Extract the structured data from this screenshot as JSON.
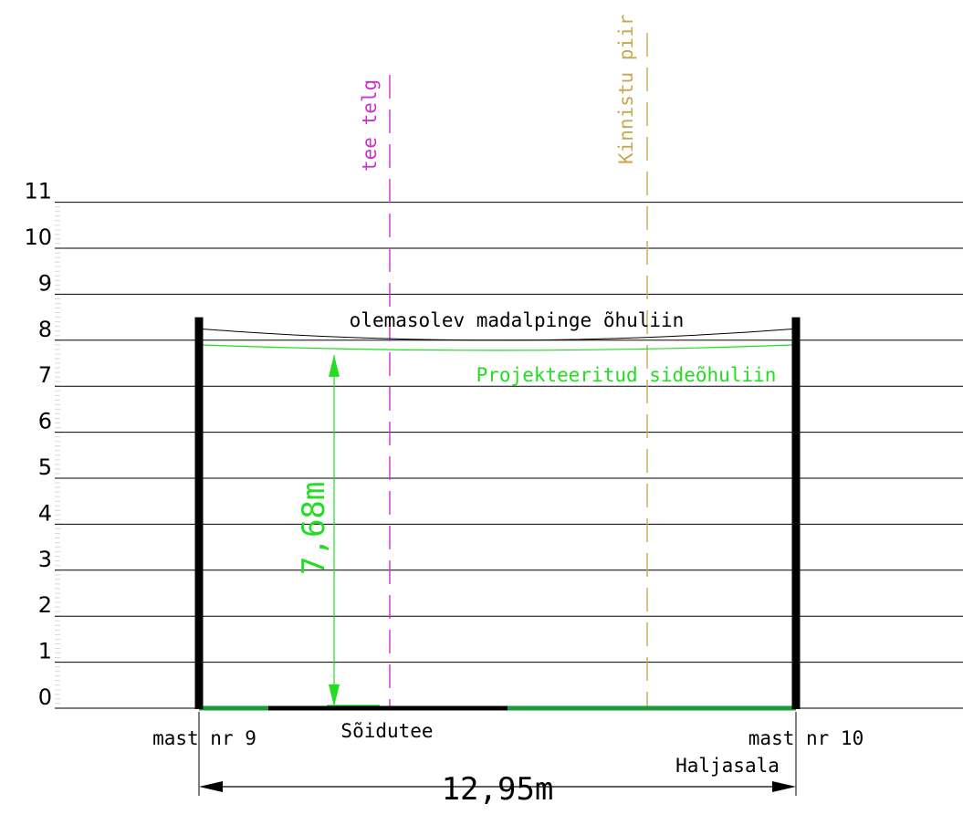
{
  "y_axis": {
    "min": 0,
    "max": 11,
    "tick_labels": [
      "0",
      "1",
      "2",
      "3",
      "4",
      "5",
      "6",
      "7",
      "8",
      "9",
      "10",
      "11"
    ]
  },
  "colors": {
    "grid": "#000000",
    "mast": "#000000",
    "road_axis": "#cc33cc",
    "property_border": "#c8a850",
    "telecom_line": "#22dd22",
    "green_ground": "#1a9a3a",
    "dimension": "#000000"
  },
  "labels": {
    "road_axis": "tee telg",
    "property_border": "Kinnistu piir",
    "existing_line": "olemasolev madalpinge õhuliin",
    "projected_line": "Projekteeritud sideõhuliin",
    "height_dim": "7,68m",
    "mast_left": "mast nr 9",
    "mast_right": "mast nr 10",
    "road": "Sõidutee",
    "grass": "Haljasala",
    "span_dim": "12,95m"
  },
  "values": {
    "clearance_m": 7.68,
    "span_m": 12.95,
    "mast_height_m": 8.5,
    "existing_line_sag_m": 8.0,
    "existing_line_end_left_m": 8.25,
    "existing_line_end_right_m": 8.25,
    "projected_line_ends_m": 7.9,
    "projected_line_sag_m": 7.78
  }
}
